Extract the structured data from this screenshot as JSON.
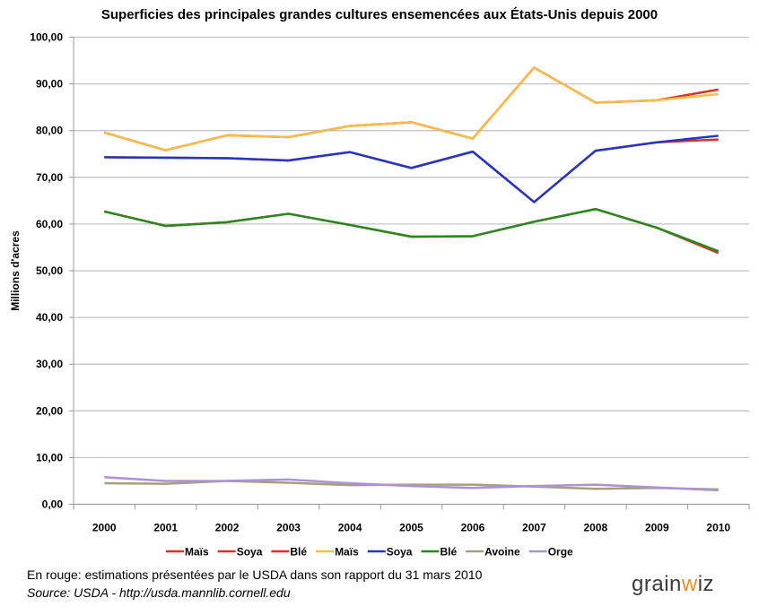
{
  "chart_data": {
    "type": "line",
    "title": "Superficies des principales grandes cultures ensemencées aux États-Unis depuis 2000",
    "xlabel": "",
    "ylabel": "Millions d'acres",
    "ylim": [
      0,
      100
    ],
    "yticks": [
      "0,00",
      "10,00",
      "20,00",
      "30,00",
      "40,00",
      "50,00",
      "60,00",
      "70,00",
      "80,00",
      "90,00",
      "100,00"
    ],
    "grid": true,
    "legend_position": "bottom",
    "categories": [
      "2000",
      "2001",
      "2002",
      "2003",
      "2004",
      "2005",
      "2006",
      "2007",
      "2008",
      "2009",
      "2010"
    ],
    "series": [
      {
        "name": "Maïs",
        "color": "#e3301c",
        "values": [
          79.6,
          75.8,
          79.0,
          78.6,
          81.0,
          81.8,
          78.3,
          93.5,
          86.0,
          86.5,
          88.8
        ]
      },
      {
        "name": "Soya",
        "color": "#e3301c",
        "values": [
          74.3,
          74.2,
          74.1,
          73.6,
          75.4,
          72.0,
          75.5,
          64.7,
          75.7,
          77.5,
          78.1
        ]
      },
      {
        "name": "Blé",
        "color": "#e3301c",
        "values": [
          62.7,
          59.6,
          60.4,
          62.2,
          59.8,
          57.3,
          57.4,
          60.5,
          63.2,
          59.2,
          53.8
        ]
      },
      {
        "name": "Maïs",
        "color": "#f7bd45",
        "values": [
          79.6,
          75.8,
          79.0,
          78.6,
          81.0,
          81.8,
          78.3,
          93.5,
          86.0,
          86.5,
          87.8
        ]
      },
      {
        "name": "Soya",
        "color": "#2236c8",
        "values": [
          74.3,
          74.2,
          74.1,
          73.6,
          75.4,
          72.0,
          75.5,
          64.7,
          75.7,
          77.5,
          78.9
        ]
      },
      {
        "name": "Blé",
        "color": "#268a1e",
        "values": [
          62.7,
          59.6,
          60.4,
          62.2,
          59.8,
          57.3,
          57.4,
          60.5,
          63.2,
          59.2,
          54.2
        ]
      },
      {
        "name": "Avoine",
        "color": "#a69f7c",
        "values": [
          4.5,
          4.4,
          5.0,
          4.6,
          4.1,
          4.2,
          4.2,
          3.8,
          3.3,
          3.5,
          3.2
        ]
      },
      {
        "name": "Orge",
        "color": "#ab93d6",
        "values": [
          5.8,
          5.0,
          5.0,
          5.3,
          4.5,
          3.9,
          3.5,
          3.9,
          4.2,
          3.6,
          3.0
        ]
      }
    ]
  },
  "footer": {
    "note": "En rouge: estimations présentées par le USDA dans son rapport du 31 mars 2010",
    "source": "Source: USDA - http://usda.mannlib.cornell.edu",
    "logo_text": "grainwiz"
  }
}
